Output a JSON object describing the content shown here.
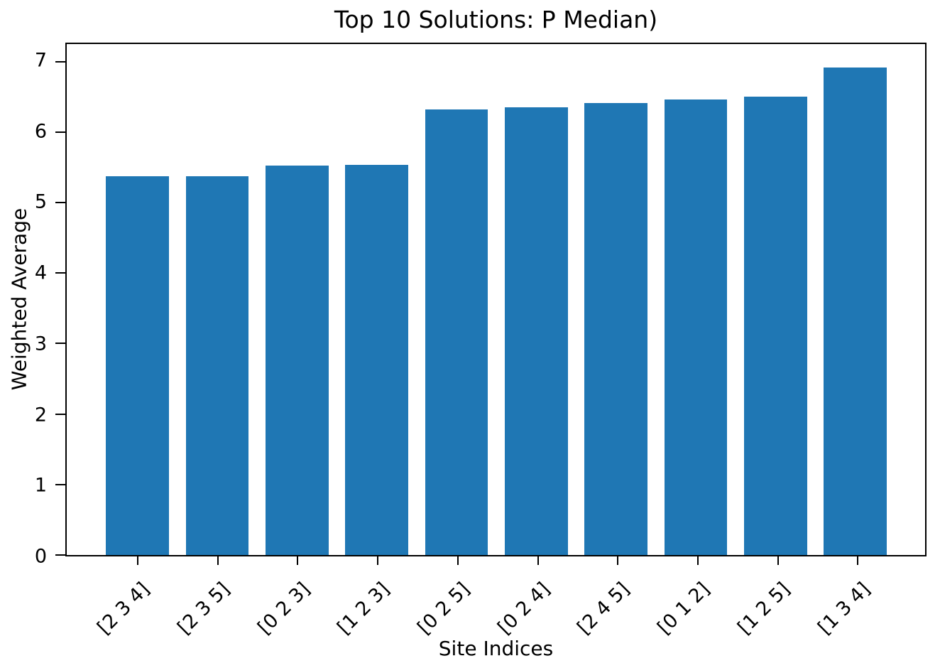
{
  "chart_data": {
    "type": "bar",
    "title": "Top 10 Solutions: P Median)",
    "xlabel": "Site Indices",
    "ylabel": "Weighted Average",
    "categories": [
      "[2 3 4]",
      "[2 3 5]",
      "[0 2 3]",
      "[1 2 3]",
      "[0 2 5]",
      "[0 2 4]",
      "[2 4 5]",
      "[0 1 2]",
      "[1 2 5]",
      "[1 3 4]"
    ],
    "values": [
      5.37,
      5.37,
      5.53,
      5.54,
      6.32,
      6.35,
      6.41,
      6.46,
      6.5,
      6.92
    ],
    "yticks": [
      0,
      1,
      2,
      3,
      4,
      5,
      6,
      7
    ],
    "ylim": [
      0,
      7.25
    ],
    "bar_color": "#1f77b4",
    "background_color": "#ffffff",
    "grid": false,
    "legend": null,
    "x_tick_rotation": 45
  }
}
